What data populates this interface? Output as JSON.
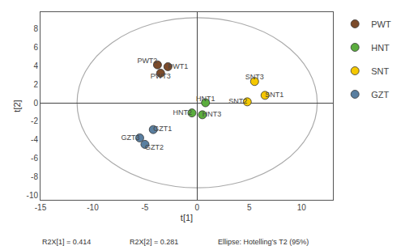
{
  "chart_data": {
    "type": "scatter",
    "xlabel": "t[1]",
    "ylabel": "t[2]",
    "series": [
      {
        "name": "PWT",
        "color": "#7B4B2A",
        "x": [
          -2.8,
          -3.8,
          -3.5
        ],
        "y": [
          3.9,
          4.1,
          3.2
        ],
        "labels": [
          "PWT1",
          "PWT2",
          "PWT3"
        ]
      },
      {
        "name": "HNT",
        "color": "#5BAD3E",
        "x": [
          0.8,
          -0.5,
          0.5
        ],
        "y": [
          0.0,
          -1.1,
          -1.3
        ],
        "labels": [
          "HNT1",
          "HNT2",
          "HNT3"
        ]
      },
      {
        "name": "SNT",
        "color": "#F5C800",
        "x": [
          6.5,
          4.8,
          5.5
        ],
        "y": [
          0.8,
          0.1,
          2.3
        ],
        "labels": [
          "SNT1",
          "SNT2",
          "SNT3"
        ]
      },
      {
        "name": "GZT",
        "color": "#5A7FA0",
        "x": [
          -4.2,
          -5.0,
          -5.5
        ],
        "y": [
          -2.9,
          -4.5,
          -3.8
        ],
        "labels": [
          "GZT1",
          "GZT2",
          "GZT3"
        ]
      }
    ],
    "ellipse": {
      "cx": 0,
      "cy": 0,
      "rx": 11.5,
      "ry": 9.2,
      "color": "#aaaaaa"
    },
    "annotations": [
      "R2X[1] = 0.414",
      "R2X[2] = 0.281",
      "Ellipse: Hotelling’s T2 (95%)"
    ],
    "xlim": [
      -15,
      13
    ],
    "xticks": [
      -15,
      -10,
      -5,
      0,
      5,
      10
    ],
    "ylim": [
      -10.5,
      9.8
    ],
    "yticks": [
      -10,
      -8,
      -6,
      -4,
      -2,
      0,
      2,
      4,
      6,
      8
    ],
    "grid": false,
    "legend": "right",
    "marker": "circle"
  }
}
